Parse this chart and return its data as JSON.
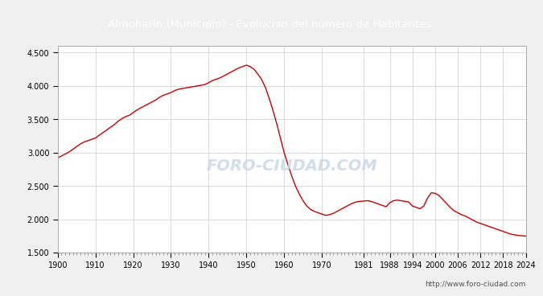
{
  "title": "Almoharín (Municipio) - Evolucion del numero de Habitantes",
  "title_color": "white",
  "title_bg": "#4a86c8",
  "watermark_text": "FORO-CIUDAD.COM",
  "watermark_color": "#c8d8ea",
  "url_text": "http://www.foro-ciudad.com",
  "line_color": "#cc0000",
  "bg_color": "#f0f0f0",
  "plot_bg": "white",
  "grid_color": "#cccccc",
  "ylim": [
    1500,
    4600
  ],
  "yticks": [
    1500,
    2000,
    2500,
    3000,
    3500,
    4000,
    4500
  ],
  "ytick_labels": [
    "1.500",
    "2.000",
    "2.500",
    "3.000",
    "3.500",
    "4.000",
    "4.500"
  ],
  "xtick_labels": [
    "1900",
    "1910",
    "1920",
    "1930",
    "1940",
    "1950",
    "1960",
    "1970",
    "1981",
    "1988",
    "1994",
    "2000",
    "2006",
    "2012",
    "2018",
    "2024"
  ],
  "years": [
    1900,
    1901,
    1902,
    1903,
    1904,
    1905,
    1906,
    1907,
    1908,
    1909,
    1910,
    1911,
    1912,
    1913,
    1914,
    1915,
    1916,
    1917,
    1918,
    1919,
    1920,
    1921,
    1922,
    1923,
    1924,
    1925,
    1926,
    1927,
    1928,
    1929,
    1930,
    1931,
    1932,
    1933,
    1934,
    1935,
    1936,
    1937,
    1938,
    1939,
    1940,
    1941,
    1942,
    1943,
    1944,
    1945,
    1946,
    1947,
    1948,
    1949,
    1950,
    1951,
    1952,
    1953,
    1954,
    1955,
    1956,
    1957,
    1958,
    1959,
    1960,
    1961,
    1962,
    1963,
    1964,
    1965,
    1966,
    1967,
    1968,
    1969,
    1970,
    1971,
    1972,
    1973,
    1974,
    1975,
    1976,
    1977,
    1978,
    1979,
    1980,
    1981,
    1982,
    1983,
    1984,
    1985,
    1986,
    1987,
    1988,
    1989,
    1990,
    1991,
    1992,
    1993,
    1994,
    1995,
    1996,
    1997,
    1998,
    1999,
    2000,
    2001,
    2002,
    2003,
    2004,
    2005,
    2006,
    2007,
    2008,
    2009,
    2010,
    2011,
    2012,
    2013,
    2014,
    2015,
    2016,
    2017,
    2018,
    2019,
    2020,
    2021,
    2022,
    2023,
    2024
  ],
  "population": [
    2920,
    2950,
    2980,
    3010,
    3050,
    3090,
    3130,
    3160,
    3180,
    3200,
    3220,
    3260,
    3300,
    3340,
    3380,
    3420,
    3470,
    3510,
    3540,
    3560,
    3600,
    3640,
    3670,
    3700,
    3730,
    3760,
    3790,
    3830,
    3860,
    3880,
    3900,
    3930,
    3950,
    3960,
    3970,
    3980,
    3990,
    4000,
    4010,
    4020,
    4050,
    4080,
    4100,
    4120,
    4150,
    4180,
    4210,
    4240,
    4270,
    4290,
    4310,
    4290,
    4250,
    4180,
    4100,
    3980,
    3820,
    3640,
    3440,
    3220,
    3000,
    2820,
    2650,
    2500,
    2380,
    2280,
    2200,
    2150,
    2120,
    2100,
    2080,
    2060,
    2070,
    2090,
    2120,
    2150,
    2180,
    2210,
    2240,
    2260,
    2270,
    2275,
    2280,
    2270,
    2250,
    2230,
    2210,
    2190,
    2250,
    2280,
    2290,
    2280,
    2270,
    2260,
    2200,
    2180,
    2160,
    2200,
    2320,
    2400,
    2390,
    2360,
    2300,
    2240,
    2180,
    2130,
    2100,
    2070,
    2050,
    2020,
    1990,
    1960,
    1940,
    1920,
    1900,
    1880,
    1860,
    1840,
    1820,
    1800,
    1780,
    1770,
    1760,
    1755,
    1750
  ]
}
